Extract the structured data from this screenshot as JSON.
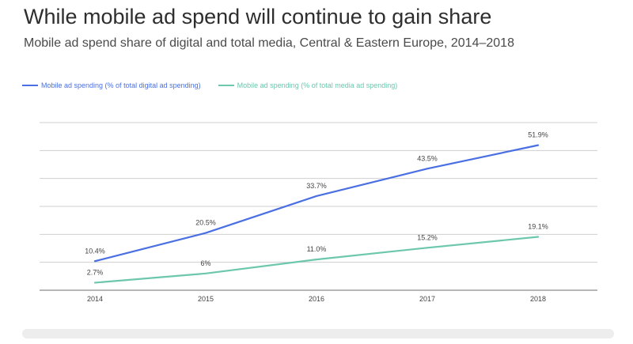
{
  "header": {
    "title": "While mobile ad spend will continue to gain share",
    "subtitle": "Mobile ad spend share of digital and total media, Central & Eastern Europe, 2014–2018"
  },
  "colors": {
    "series_digital": "#4a6fe3",
    "series_total": "#6cc7ad",
    "gridline": "#cfcfcf",
    "axis": "#8a8a8a",
    "text": "#444444"
  },
  "chart_data": {
    "type": "line",
    "x": [
      "2014",
      "2015",
      "2016",
      "2017",
      "2018"
    ],
    "series": [
      {
        "name": "Mobile ad spending (% of total digital ad spending)",
        "values": [
          10.4,
          20.5,
          33.7,
          43.5,
          51.9
        ],
        "labels": [
          "10.4%",
          "20.5%",
          "33.7%",
          "43.5%",
          "51.9%"
        ]
      },
      {
        "name": "Mobile ad spending (% of total media ad spending)",
        "values": [
          2.7,
          6,
          11.0,
          15.2,
          19.1
        ],
        "labels": [
          "2.7%",
          "6%",
          "11.0%",
          "15.2%",
          "19.1%"
        ]
      }
    ],
    "ylim": [
      0,
      60
    ],
    "grid": true,
    "legend_position": "top-left",
    "xlabel": "",
    "ylabel": ""
  }
}
